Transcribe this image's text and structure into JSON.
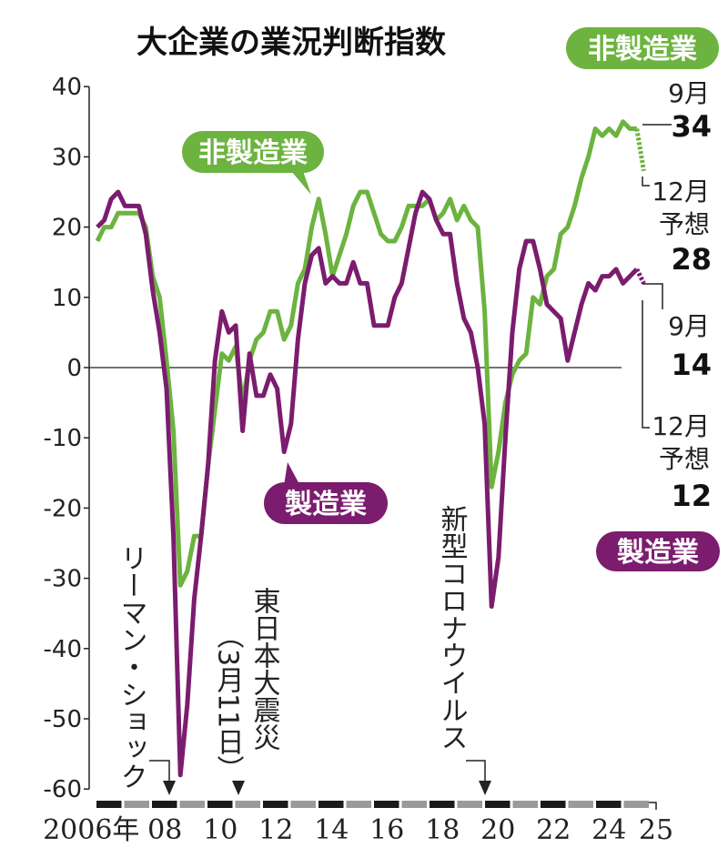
{
  "chart_data": {
    "type": "line",
    "title": "大企業の業況判断指数",
    "x_start_year": 2006,
    "frequency": "quarterly",
    "ylim": [
      -60,
      40
    ],
    "yticks": [
      40,
      30,
      20,
      10,
      0,
      -10,
      -20,
      -30,
      -40,
      -50,
      -60
    ],
    "xtick_labels": [
      "2006年",
      "08",
      "10",
      "12",
      "14",
      "16",
      "18",
      "20",
      "22",
      "24",
      "25"
    ],
    "xtick_years": [
      2006,
      2008,
      2010,
      2012,
      2014,
      2016,
      2018,
      2020,
      2022,
      2024,
      2025
    ],
    "series": [
      {
        "name": "非製造業",
        "color": "#6cb33f",
        "values": [
          18,
          20,
          20,
          22,
          22,
          22,
          22,
          20,
          13,
          10,
          1,
          -9,
          -31,
          -29,
          -24,
          -24,
          -14,
          -6,
          2,
          1,
          3,
          -5,
          1,
          4,
          5,
          8,
          8,
          4,
          6,
          12,
          14,
          20,
          24,
          19,
          13,
          16,
          19,
          23,
          25,
          25,
          22,
          19,
          18,
          18,
          20,
          23,
          23,
          23,
          24,
          21,
          22,
          24,
          21,
          23,
          21,
          20,
          8,
          -17,
          -12,
          -5,
          -1,
          1,
          2,
          10,
          9,
          13,
          14,
          19,
          20,
          23,
          27,
          30,
          34,
          33,
          34,
          33,
          35,
          34,
          34
        ],
        "forecast": 28
      },
      {
        "name": "製造業",
        "color": "#7b1c6e",
        "values": [
          20,
          21,
          24,
          25,
          23,
          23,
          23,
          19,
          11,
          5,
          -3,
          -24,
          -58,
          -48,
          -33,
          -24,
          -14,
          1,
          8,
          5,
          6,
          -9,
          2,
          -4,
          -4,
          -1,
          -3,
          -12,
          -8,
          4,
          12,
          16,
          17,
          12,
          13,
          12,
          12,
          15,
          12,
          12,
          6,
          6,
          6,
          10,
          12,
          17,
          22,
          25,
          24,
          21,
          19,
          19,
          12,
          7,
          5,
          0,
          -8,
          -34,
          -27,
          -10,
          5,
          14,
          18,
          18,
          14,
          9,
          8,
          7,
          1,
          5,
          9,
          12,
          11,
          13,
          13,
          14,
          12,
          13,
          14
        ],
        "forecast": 12
      }
    ],
    "legend": {
      "nonmfg": "非製造業",
      "mfg": "製造業"
    },
    "annotations": {
      "nonmfg_sep_label": "9月",
      "nonmfg_sep_value": "34",
      "nonmfg_dec_label": "12月",
      "nonmfg_dec_sub": "予想",
      "nonmfg_dec_value": "28",
      "mfg_sep_label": "9月",
      "mfg_sep_value": "14",
      "mfg_dec_label": "12月",
      "mfg_dec_sub": "予想",
      "mfg_dec_value": "12"
    },
    "events": [
      {
        "label": "リーマン・ショック",
        "year": 2008.7
      },
      {
        "label": "東日本大震災",
        "sub": "（3月11日）",
        "year": 2011.2
      },
      {
        "label": "新型コロナウイルス",
        "year": 2020.0
      }
    ]
  }
}
